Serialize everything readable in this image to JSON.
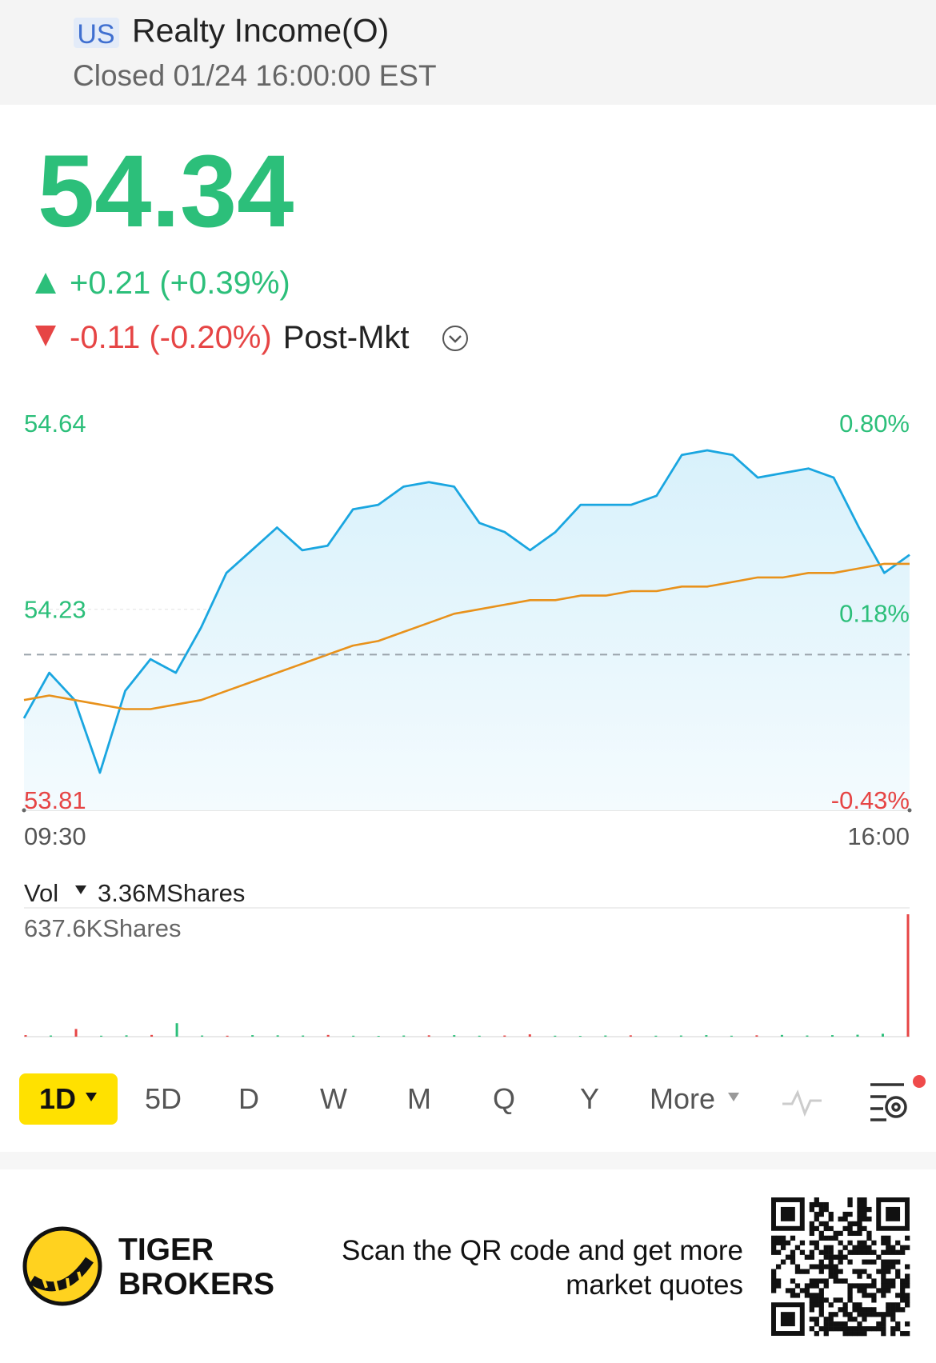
{
  "header": {
    "market": "US",
    "name": "Realty Income(O)",
    "status": "Closed 01/24 16:00:00 EST"
  },
  "quote": {
    "price": 54.34,
    "change": "+0.21 (+0.39%)",
    "post_change": "-0.11 (-0.20%)",
    "post_label": "Post-Mkt"
  },
  "chart_data": [
    {
      "type": "line",
      "series": [
        {
          "color": "#1aa6e0",
          "values": [
            53.99,
            54.09,
            54.03,
            53.87,
            54.05,
            54.12,
            54.09,
            54.19,
            54.31,
            54.36,
            54.41,
            54.36,
            54.37,
            54.45,
            54.46,
            54.5,
            54.51,
            54.5,
            54.42,
            54.4,
            54.36,
            54.4,
            54.46,
            54.46,
            54.46,
            54.48,
            54.57,
            54.58,
            54.57,
            54.52,
            54.53,
            54.54,
            54.52,
            54.41,
            54.31,
            54.35
          ]
        },
        {
          "color": "#e8921c",
          "values": [
            54.03,
            54.04,
            54.03,
            54.02,
            54.01,
            54.01,
            54.02,
            54.03,
            54.05,
            54.07,
            54.09,
            54.11,
            54.13,
            54.15,
            54.16,
            54.18,
            54.2,
            54.22,
            54.23,
            54.24,
            54.25,
            54.25,
            54.26,
            54.26,
            54.27,
            54.27,
            54.28,
            54.28,
            54.29,
            54.3,
            54.3,
            54.31,
            54.31,
            54.32,
            54.33,
            54.33
          ]
        }
      ],
      "area": true,
      "reference_line": 54.13,
      "ylim": [
        53.81,
        54.64
      ],
      "yticks": [
        53.81,
        54.23,
        54.64
      ],
      "y2lim": [
        -0.43,
        0.8
      ],
      "y2ticks": [
        {
          "value": -0.43,
          "label": "-0.43%"
        },
        {
          "value": 0.18,
          "label": "0.18%"
        },
        {
          "value": 0.8,
          "label": "0.80%"
        }
      ],
      "x_labels": [
        "09:30",
        "16:00"
      ],
      "up_color": "#2cbf7a",
      "down_color": "#e64545"
    },
    {
      "type": "bar",
      "title": "Vol",
      "total": "3.36MShares",
      "values": [
        8,
        6,
        40,
        5,
        7,
        9,
        70,
        6,
        5,
        8,
        7,
        6,
        9,
        5,
        4,
        6,
        7,
        8,
        5,
        6,
        12,
        5,
        4,
        6,
        7,
        5,
        6,
        8,
        5,
        7,
        9,
        6,
        8,
        10,
        15,
        637.6
      ],
      "colors": [
        "#e64545",
        "#2cbf7a",
        "#e64545",
        "#2cbf7a",
        "#2cbf7a",
        "#e64545",
        "#2cbf7a",
        "#2cbf7a",
        "#e64545",
        "#2cbf7a",
        "#2cbf7a",
        "#2cbf7a",
        "#e64545",
        "#2cbf7a",
        "#2cbf7a",
        "#2cbf7a",
        "#e64545",
        "#2cbf7a",
        "#2cbf7a",
        "#e64545",
        "#e64545",
        "#2cbf7a",
        "#2cbf7a",
        "#2cbf7a",
        "#e64545",
        "#2cbf7a",
        "#2cbf7a",
        "#2cbf7a",
        "#2cbf7a",
        "#e64545",
        "#2cbf7a",
        "#2cbf7a",
        "#2cbf7a",
        "#2cbf7a",
        "#2cbf7a",
        "#e64545"
      ],
      "ylim": [
        0,
        637.6
      ],
      "yticks": [
        {
          "value": 637.6,
          "label": "637.6KShares"
        }
      ]
    }
  ],
  "tabs": [
    "1D",
    "5D",
    "D",
    "W",
    "M",
    "Q",
    "Y",
    "More"
  ],
  "footer": {
    "brand": [
      "TIGER",
      "BROKERS"
    ],
    "promo": [
      "Scan the QR code and get more",
      "market quotes"
    ]
  }
}
